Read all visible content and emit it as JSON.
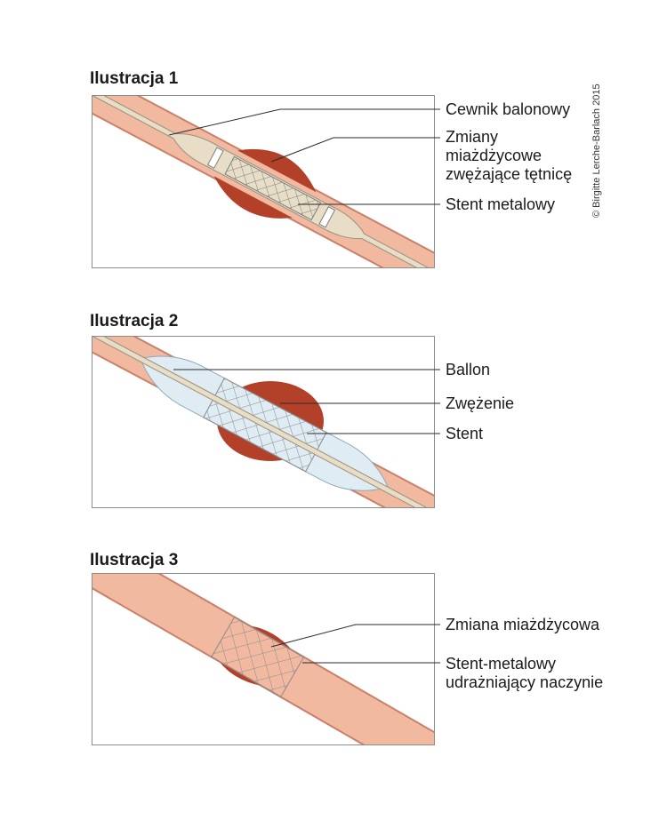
{
  "credit": "© Birgitte Lerche-Barlach 2015",
  "colors": {
    "vessel": "#f2b9a1",
    "vessel_wall": "#c9806a",
    "plaque": "#b3412a",
    "catheter": "#e8ddc6",
    "balloon": "#dfecf3",
    "stent": "#8a8a8a",
    "frame": "#8c8c8c"
  },
  "panels": [
    {
      "title": "Ilustracja 1",
      "labels": [
        "Cewnik balonowy",
        "Zmiany\nmiażdżycowe\nzwężające tętnicę",
        "Stent metalowy"
      ]
    },
    {
      "title": "Ilustracja 2",
      "labels": [
        "Ballon",
        "Zwężenie",
        "Stent"
      ]
    },
    {
      "title": "Ilustracja 3",
      "labels": [
        "Zmiana miażdżycowa",
        "Stent-metalowy\nudrażniający naczynie"
      ]
    }
  ]
}
